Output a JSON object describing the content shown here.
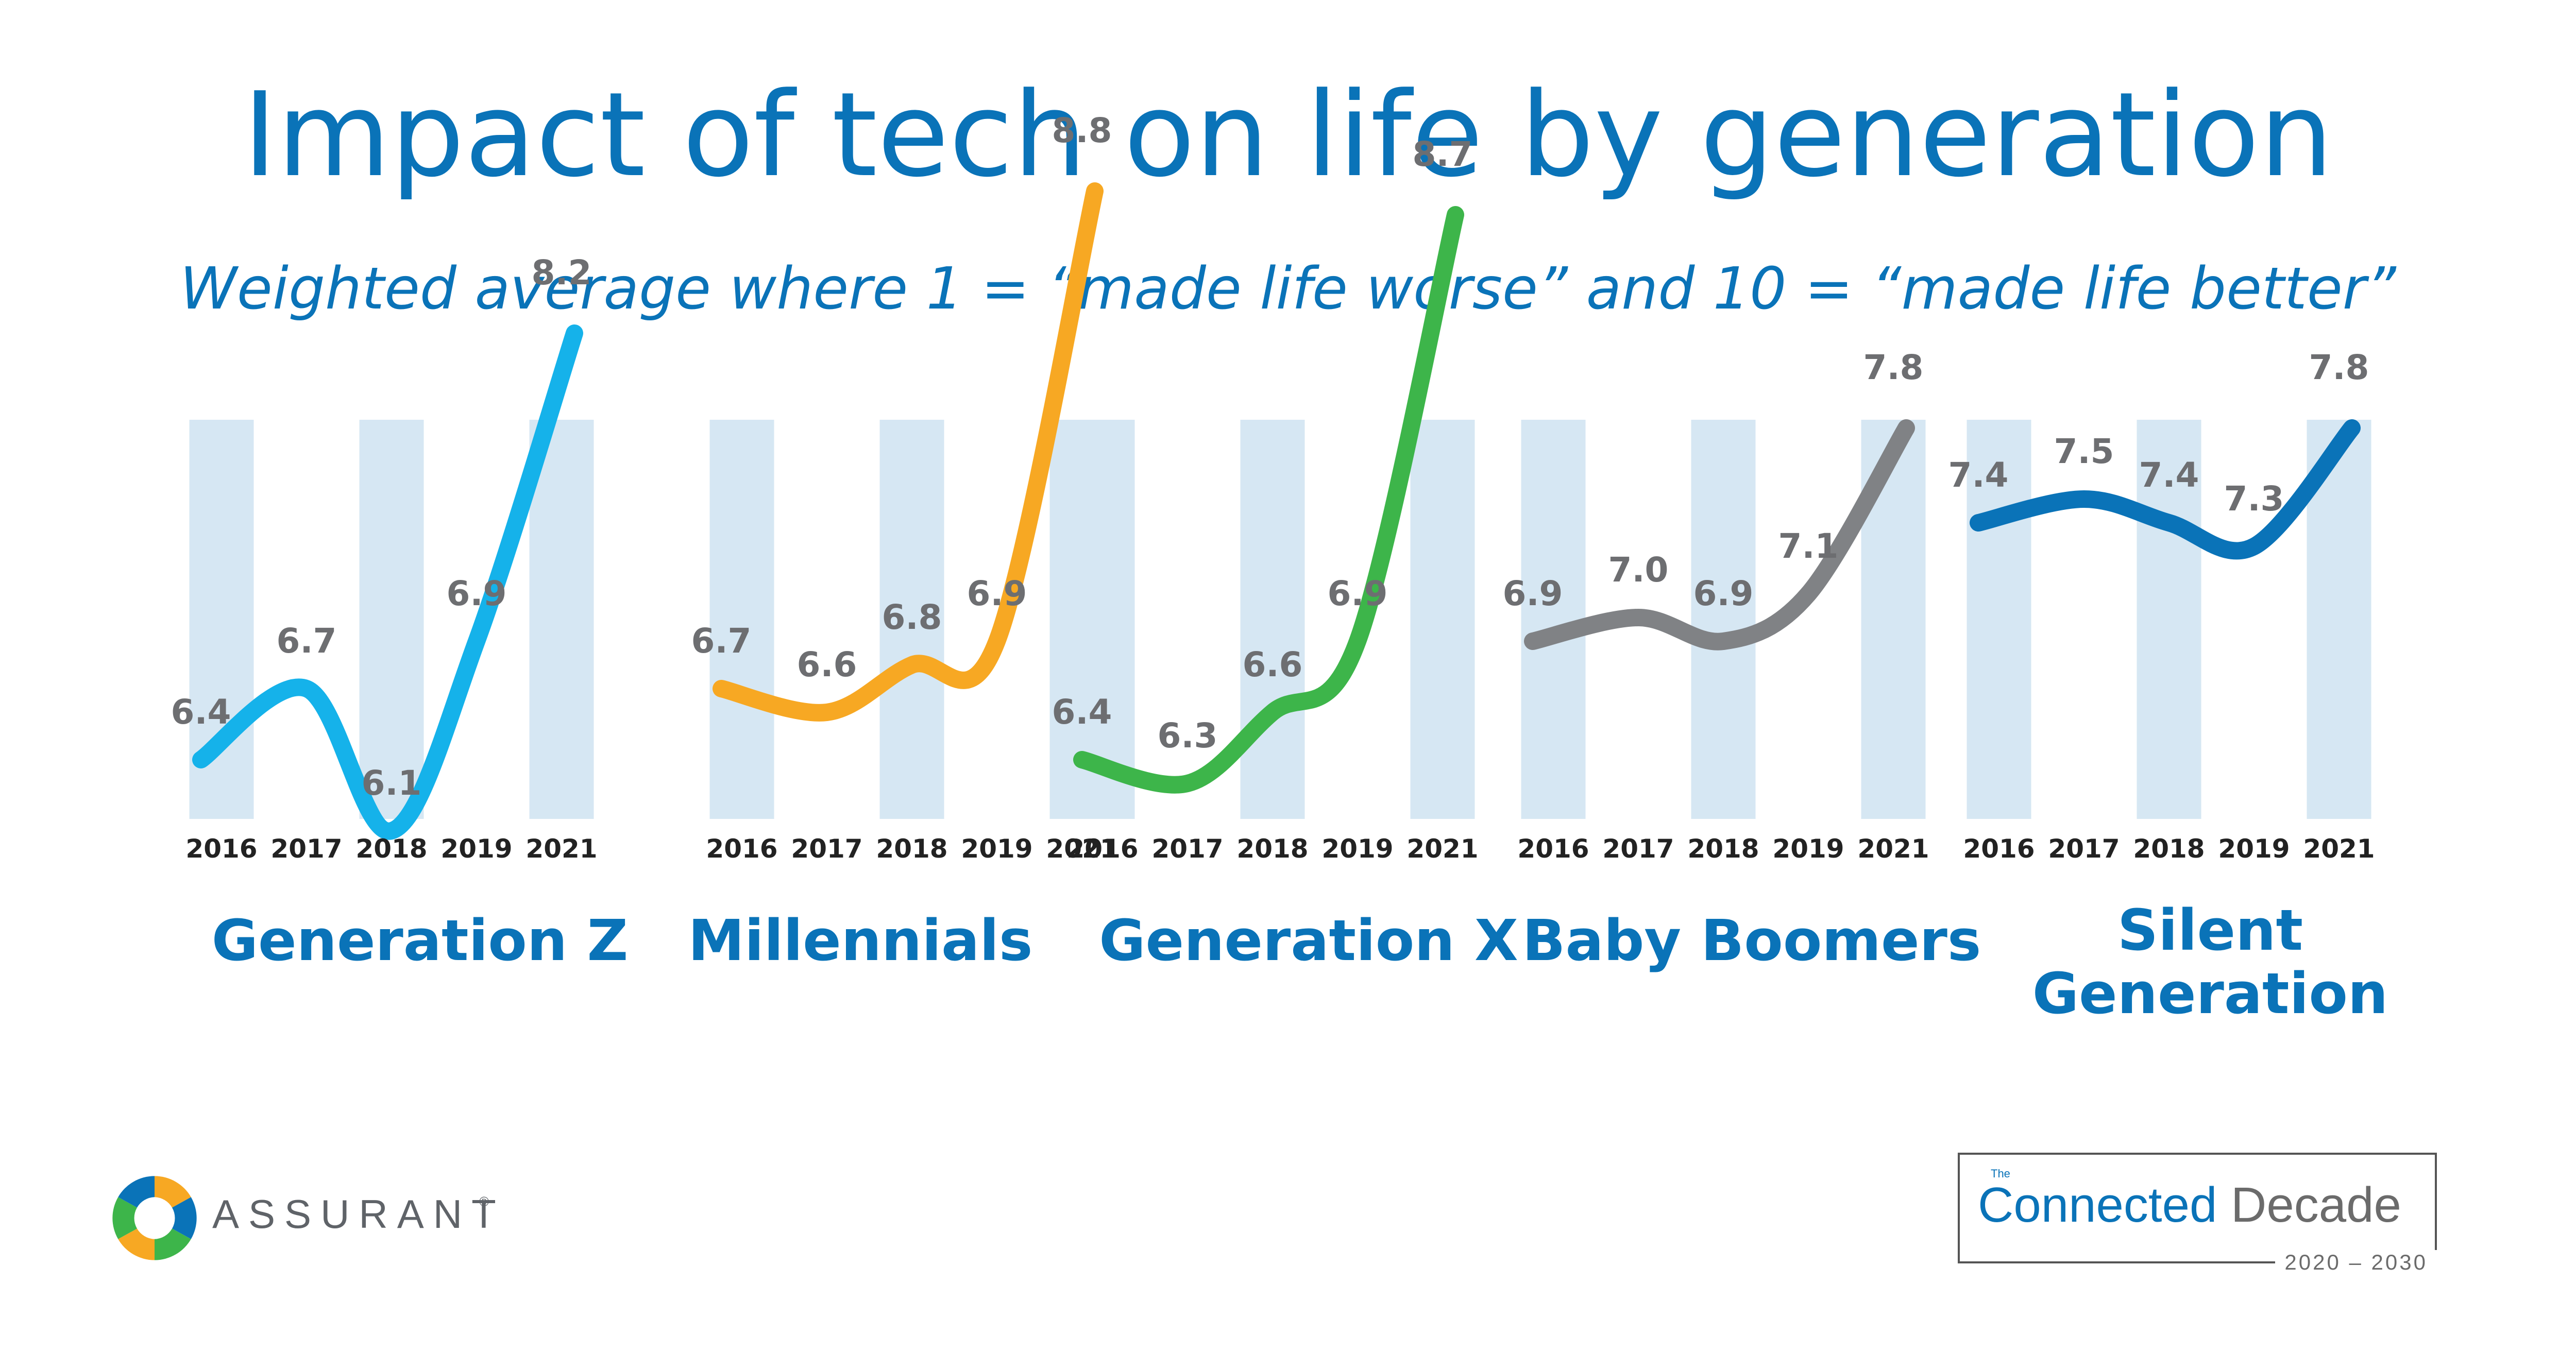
{
  "title": "Impact of tech on life by generation",
  "subtitle": "Weighted average where 1 = “made life worse” and 10 = “made life better”",
  "colors": {
    "title": "#0a73b8",
    "band": "#d6e7f3",
    "value_label": "#6d6e71",
    "year_label": "#222222",
    "generation_label": "#0a73b8"
  },
  "chart_data": [
    {
      "type": "line",
      "name": "Generation Z",
      "color": "#15b2ea",
      "x": [
        "2016",
        "2017",
        "2018",
        "2019",
        "2021"
      ],
      "values": [
        6.4,
        6.7,
        6.1,
        6.9,
        8.2
      ]
    },
    {
      "type": "line",
      "name": "Millennials",
      "color": "#f7a823",
      "x": [
        "2016",
        "2017",
        "2018",
        "2019",
        "2021"
      ],
      "values": [
        6.7,
        6.6,
        6.8,
        6.9,
        8.8
      ]
    },
    {
      "type": "line",
      "name": "Generation X",
      "color": "#3db54a",
      "x": [
        "2016",
        "2017",
        "2018",
        "2019",
        "2021"
      ],
      "values": [
        6.4,
        6.3,
        6.6,
        6.9,
        8.7
      ]
    },
    {
      "type": "line",
      "name": "Baby Boomers",
      "color": "#808285",
      "x": [
        "2016",
        "2017",
        "2018",
        "2019",
        "2021"
      ],
      "values": [
        6.9,
        7.0,
        6.9,
        7.1,
        7.8
      ]
    },
    {
      "type": "line",
      "name": "Silent Generation",
      "color": "#0a73b8",
      "x": [
        "2016",
        "2017",
        "2018",
        "2019",
        "2021"
      ],
      "values": [
        7.4,
        7.5,
        7.4,
        7.3,
        7.8
      ]
    }
  ],
  "generation_labels": [
    "Generation Z",
    "Millennials",
    "Generation X",
    "Baby Boomers",
    "Silent Generation"
  ],
  "logo": {
    "wordmark": "ASSURANT",
    "registered": "®"
  },
  "badge": {
    "the": "The",
    "connected": "Connected",
    "decade": "Decade",
    "years": "2020 – 2030"
  }
}
